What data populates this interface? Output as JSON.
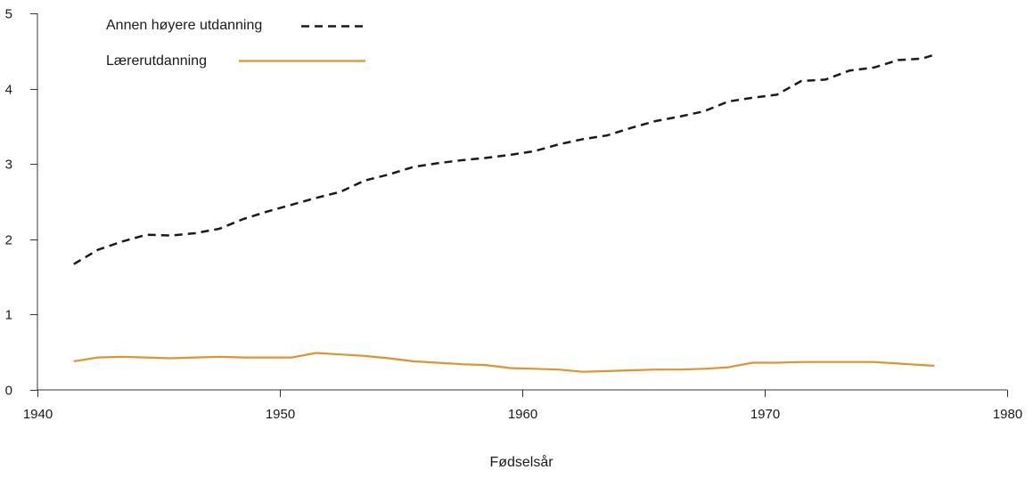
{
  "chart_data": {
    "type": "line",
    "title": "",
    "xlabel": "Fødselsår",
    "ylabel": "",
    "xlim": [
      1940,
      1980
    ],
    "ylim": [
      0,
      5
    ],
    "x_ticks": [
      1940,
      1950,
      1960,
      1970,
      1980
    ],
    "y_ticks": [
      0,
      1,
      2,
      3,
      4,
      5
    ],
    "grid": false,
    "legend": {
      "position": "top-left",
      "entries": [
        "Annen høyere utdanning",
        "Lærerutdanning"
      ]
    },
    "series": [
      {
        "name": "Annen høyere utdanning",
        "color": "#1a1a1a",
        "line_style": "dashed",
        "x": [
          1941.5,
          1942.5,
          1943.5,
          1944.5,
          1945.5,
          1946.5,
          1947.5,
          1948.5,
          1949.5,
          1950.5,
          1951.5,
          1952.5,
          1953.5,
          1954.5,
          1955.5,
          1956.5,
          1957.5,
          1958.5,
          1959.5,
          1960.5,
          1961.5,
          1962.5,
          1963.5,
          1964.5,
          1965.5,
          1966.5,
          1967.5,
          1968.5,
          1969.5,
          1970.5,
          1971.5,
          1972.5,
          1973.5,
          1974.5,
          1975.5,
          1976.5,
          1977.0
        ],
        "values": [
          1.67,
          1.86,
          1.97,
          2.06,
          2.05,
          2.08,
          2.14,
          2.27,
          2.37,
          2.46,
          2.55,
          2.63,
          2.78,
          2.86,
          2.96,
          3.01,
          3.05,
          3.08,
          3.12,
          3.17,
          3.26,
          3.33,
          3.38,
          3.48,
          3.57,
          3.63,
          3.7,
          3.83,
          3.88,
          3.92,
          4.1,
          4.12,
          4.24,
          4.28,
          4.38,
          4.4,
          4.45
        ]
      },
      {
        "name": "Lærerutdanning",
        "color": "#e0922d",
        "line_style": "solid",
        "x": [
          1941.5,
          1942.5,
          1943.5,
          1944.5,
          1945.5,
          1946.5,
          1947.5,
          1948.5,
          1949.5,
          1950.5,
          1951.5,
          1952.5,
          1953.5,
          1954.5,
          1955.5,
          1956.5,
          1957.5,
          1958.5,
          1959.5,
          1960.5,
          1961.5,
          1962.5,
          1963.5,
          1964.5,
          1965.5,
          1966.5,
          1967.5,
          1968.5,
          1969.5,
          1970.5,
          1971.5,
          1972.5,
          1973.5,
          1974.5,
          1975.5,
          1976.5,
          1977.0
        ],
        "values": [
          0.38,
          0.43,
          0.44,
          0.43,
          0.42,
          0.43,
          0.44,
          0.43,
          0.43,
          0.43,
          0.49,
          0.47,
          0.45,
          0.42,
          0.38,
          0.36,
          0.34,
          0.33,
          0.29,
          0.28,
          0.27,
          0.24,
          0.25,
          0.26,
          0.27,
          0.27,
          0.28,
          0.3,
          0.36,
          0.36,
          0.37,
          0.37,
          0.37,
          0.37,
          0.35,
          0.33,
          0.32
        ]
      }
    ]
  }
}
